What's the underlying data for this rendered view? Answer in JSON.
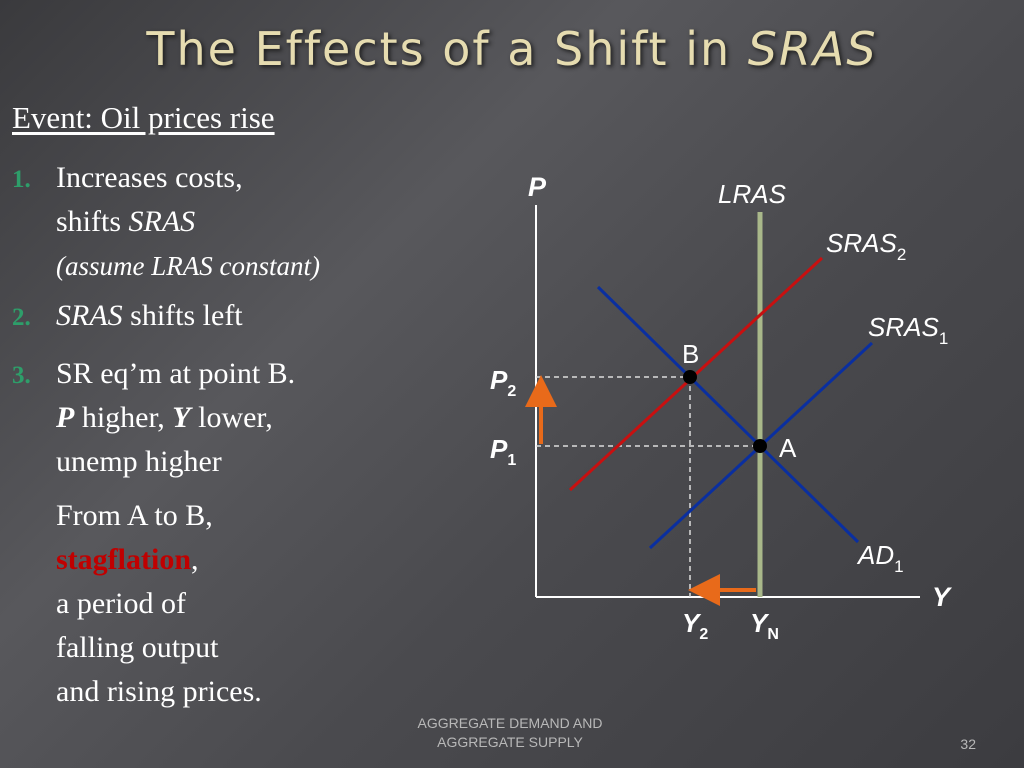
{
  "slide": {
    "title": "The Effects of a Shift in ",
    "title_italic": "SRAS",
    "event": "Event:  Oil prices rise",
    "items": [
      {
        "number": "1.",
        "line1": "Increases costs,",
        "line2_prefix": "shifts ",
        "line2_italic": "SRAS",
        "line3": "(assume LRAS constant)"
      },
      {
        "number": "2.",
        "italic": "SRAS",
        "text": " shifts left"
      },
      {
        "number": "3.",
        "line1": "SR eq’m at point B.",
        "p": "P",
        "mid": " higher, ",
        "y": "Y",
        "end": "  lower,",
        "line3": "unemp higher"
      }
    ],
    "conclusion": {
      "line1": "From A to B,",
      "highlight": "stagflation",
      "comma": ",",
      "line3": "a period of",
      "line4": "falling output",
      "line5": "and rising prices."
    },
    "footer_line1": "AGGREGATE DEMAND AND",
    "footer_line2": "AGGREGATE SUPPLY",
    "page_number": "32"
  },
  "diagram": {
    "axis_y": "P",
    "axis_x": "Y",
    "lras": "LRAS",
    "sras2": "SRAS",
    "sras2_sub": "2",
    "sras1": "SRAS",
    "sras1_sub": "1",
    "ad": "AD",
    "ad_sub": "1",
    "point_b": "B",
    "point_a": "A",
    "p2": "P",
    "p2_sub": "2",
    "p1": "P",
    "p1_sub": "1",
    "y2": "Y",
    "y2_sub": "2",
    "yn": "Y",
    "yn_sub": "N",
    "colors": {
      "sras": "#0a2fa0",
      "sras2": "#c81010",
      "ad": "#0a2fa0",
      "lras": "#a9b88a",
      "arrow": "#e86a1a",
      "axis": "#ffffff"
    }
  }
}
